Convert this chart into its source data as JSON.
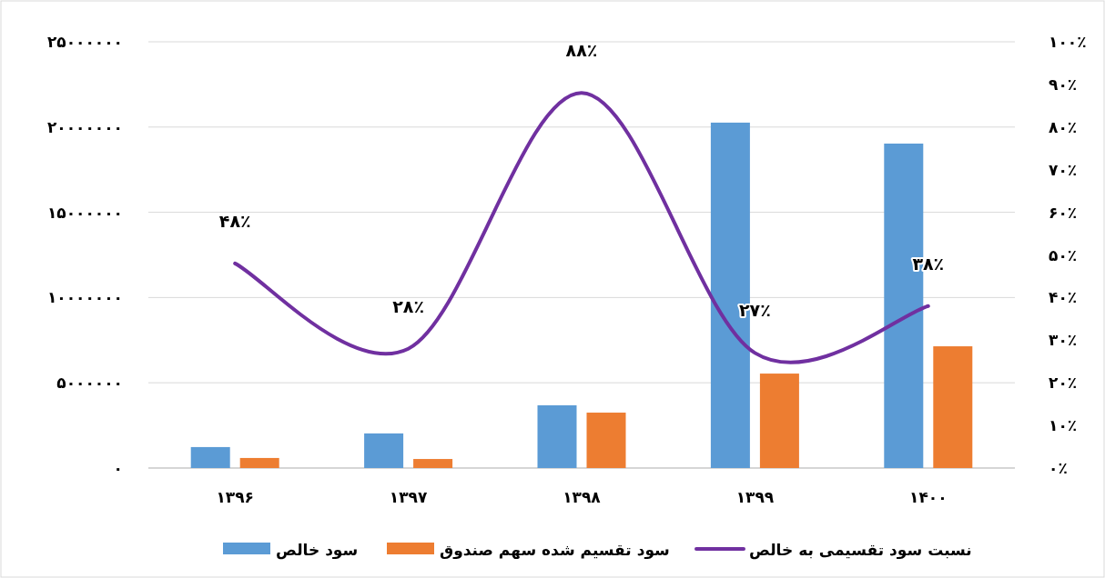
{
  "chart_data": {
    "type": "bar",
    "categories": [
      "۱۳۹۶",
      "۱۳۹۷",
      "۱۳۹۸",
      "۱۳۹۹",
      "۱۴۰۰"
    ],
    "series": [
      {
        "name": "سود خالص",
        "color": "#5b9bd5",
        "values": [
          1230000,
          2030000,
          3680000,
          20260000,
          19030000
        ]
      },
      {
        "name": "سود تقسیم شده سهم صندوق",
        "color": "#ed7d31",
        "values": [
          590000,
          530000,
          3250000,
          5540000,
          7140000
        ]
      },
      {
        "name": "نسبت سود تقسیمی به خالص",
        "type": "line",
        "axis": "y2",
        "color": "#7030a0",
        "values": [
          48,
          28,
          88,
          27,
          38
        ],
        "value_labels": [
          "۴۸٪",
          "۲۸٪",
          "۸۸٪",
          "۲۷٪",
          "۳۸٪"
        ]
      }
    ],
    "ylim": [
      0,
      25000000
    ],
    "yticks": [
      {
        "value": 0,
        "label": "۰"
      },
      {
        "value": 5000000,
        "label": "۵۰۰۰۰۰۰"
      },
      {
        "value": 10000000,
        "label": "۱۰۰۰۰۰۰۰"
      },
      {
        "value": 15000000,
        "label": "۱۵۰۰۰۰۰۰"
      },
      {
        "value": 20000000,
        "label": "۲۰۰۰۰۰۰۰"
      },
      {
        "value": 25000000,
        "label": "۲۵۰۰۰۰۰۰"
      }
    ],
    "y2lim": [
      0,
      100
    ],
    "y2ticks": [
      {
        "value": 0,
        "label": "۰٪"
      },
      {
        "value": 10,
        "label": "۱۰٪"
      },
      {
        "value": 20,
        "label": "۲۰٪"
      },
      {
        "value": 30,
        "label": "۳۰٪"
      },
      {
        "value": 40,
        "label": "۴۰٪"
      },
      {
        "value": 50,
        "label": "۵۰٪"
      },
      {
        "value": 60,
        "label": "۶۰٪"
      },
      {
        "value": 70,
        "label": "۷۰٪"
      },
      {
        "value": 80,
        "label": "۸۰٪"
      },
      {
        "value": 90,
        "label": "۹۰٪"
      },
      {
        "value": 100,
        "label": "۱۰۰٪"
      }
    ],
    "grid": "y",
    "legend": "bottom"
  }
}
